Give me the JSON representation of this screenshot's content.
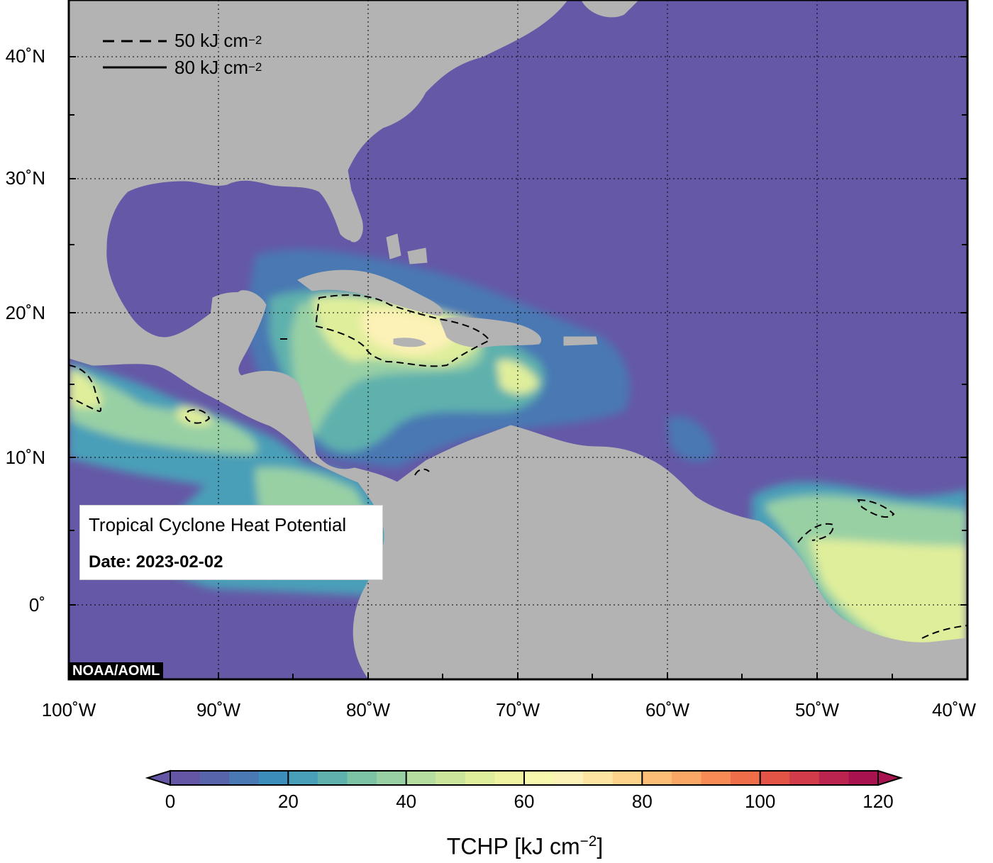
{
  "map": {
    "title": "Tropical Cyclone Heat Potential",
    "date": "Date: 2023-02-02",
    "credit": "NOAA/AOML",
    "lon_labels": [
      "100˚W",
      "90˚W",
      "80˚W",
      "70˚W",
      "60˚W",
      "50˚W",
      "40˚W"
    ],
    "lat_labels": [
      "40˚N",
      "30˚N",
      "20˚N",
      "10˚N",
      "0˚"
    ],
    "extent": {
      "lon": [
        -100,
        -40
      ],
      "lat": [
        -5,
        44
      ]
    },
    "legend": [
      {
        "style": "dashed",
        "label": "50 kJ cm",
        "exponent": "−2"
      },
      {
        "style": "solid",
        "label": "80 kJ cm",
        "exponent": "−2"
      }
    ],
    "colors": {
      "land": "#b3b3b3",
      "ocean_low": "#6558a6",
      "border": "#000000"
    }
  },
  "colorbar": {
    "title": "TCHP [kJ cm",
    "title_exponent": "−2",
    "title_close": "]",
    "ticks": [
      "0",
      "20",
      "40",
      "60",
      "80",
      "100",
      "120"
    ],
    "range": [
      0,
      120
    ],
    "colors": [
      "#6456a5",
      "#5864a9",
      "#4a78b2",
      "#3c8dba",
      "#4a9fb8",
      "#5fb1ad",
      "#7cc3a6",
      "#98d0a4",
      "#b4dd9f",
      "#cbe69b",
      "#dfee9b",
      "#eef4a0",
      "#f7f7ae",
      "#fcf1b6",
      "#fde4a0",
      "#fdd28a",
      "#fcbd76",
      "#faa664",
      "#f68b55",
      "#ee6e4a",
      "#e35346",
      "#d23b49",
      "#bc2450",
      "#a8124f"
    ]
  }
}
